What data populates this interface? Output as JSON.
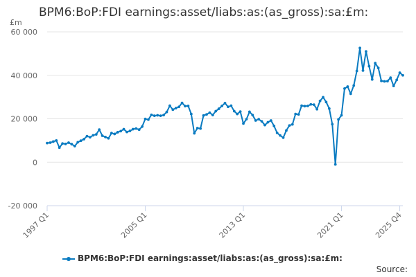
{
  "chart_data": {
    "type": "line",
    "title": "BPM6:BoP:FDI earnings:asset/liabs:as:(as_gross):sa:£m:",
    "ylabel": "£m",
    "ylim": [
      -20000,
      60000
    ],
    "yticks": [
      -20000,
      0,
      20000,
      40000,
      60000
    ],
    "ytick_labels": [
      "-20 000",
      "0",
      "20 000",
      "40 000",
      "60 000"
    ],
    "xtick_labels": [
      "1997 Q1",
      "2005 Q1",
      "2013 Q1",
      "2021 Q1",
      "2025 Q4"
    ],
    "xtick_index": [
      0,
      32,
      64,
      96,
      115
    ],
    "grid": true,
    "legend_position": "bottom",
    "series": [
      {
        "name": "BPM6:BoP:FDI earnings:asset/liabs:as:(as_gross):sa:£m:",
        "color": "#0a7bc1",
        "values": [
          8800,
          9000,
          9500,
          10000,
          6700,
          8600,
          8400,
          9000,
          8300,
          7400,
          9200,
          9900,
          10600,
          12000,
          11500,
          12400,
          12800,
          15000,
          12200,
          11600,
          11000,
          13400,
          13000,
          13800,
          14300,
          15200,
          13900,
          14400,
          15200,
          15500,
          15000,
          16400,
          19900,
          19600,
          21800,
          21400,
          21600,
          21400,
          21700,
          23100,
          26000,
          24200,
          24900,
          25500,
          27300,
          25800,
          25900,
          22200,
          13300,
          15700,
          15500,
          21500,
          22000,
          22800,
          21700,
          23500,
          24600,
          25900,
          27200,
          25500,
          26000,
          23500,
          22200,
          23300,
          17800,
          19800,
          23200,
          21700,
          19200,
          19800,
          18800,
          17100,
          18400,
          19200,
          16700,
          13500,
          12300,
          11300,
          14600,
          16900,
          17400,
          22200,
          22000,
          26000,
          25800,
          25900,
          26600,
          26500,
          24400,
          28200,
          29900,
          27700,
          24700,
          17500,
          -1000,
          19700,
          21600,
          33900,
          34800,
          31500,
          35300,
          42000,
          52600,
          42200,
          51000,
          44200,
          38100,
          45600,
          43400,
          37400,
          37200,
          37300,
          38900,
          35100,
          37900,
          41200,
          40000
        ]
      }
    ]
  },
  "source_label": "Source:"
}
